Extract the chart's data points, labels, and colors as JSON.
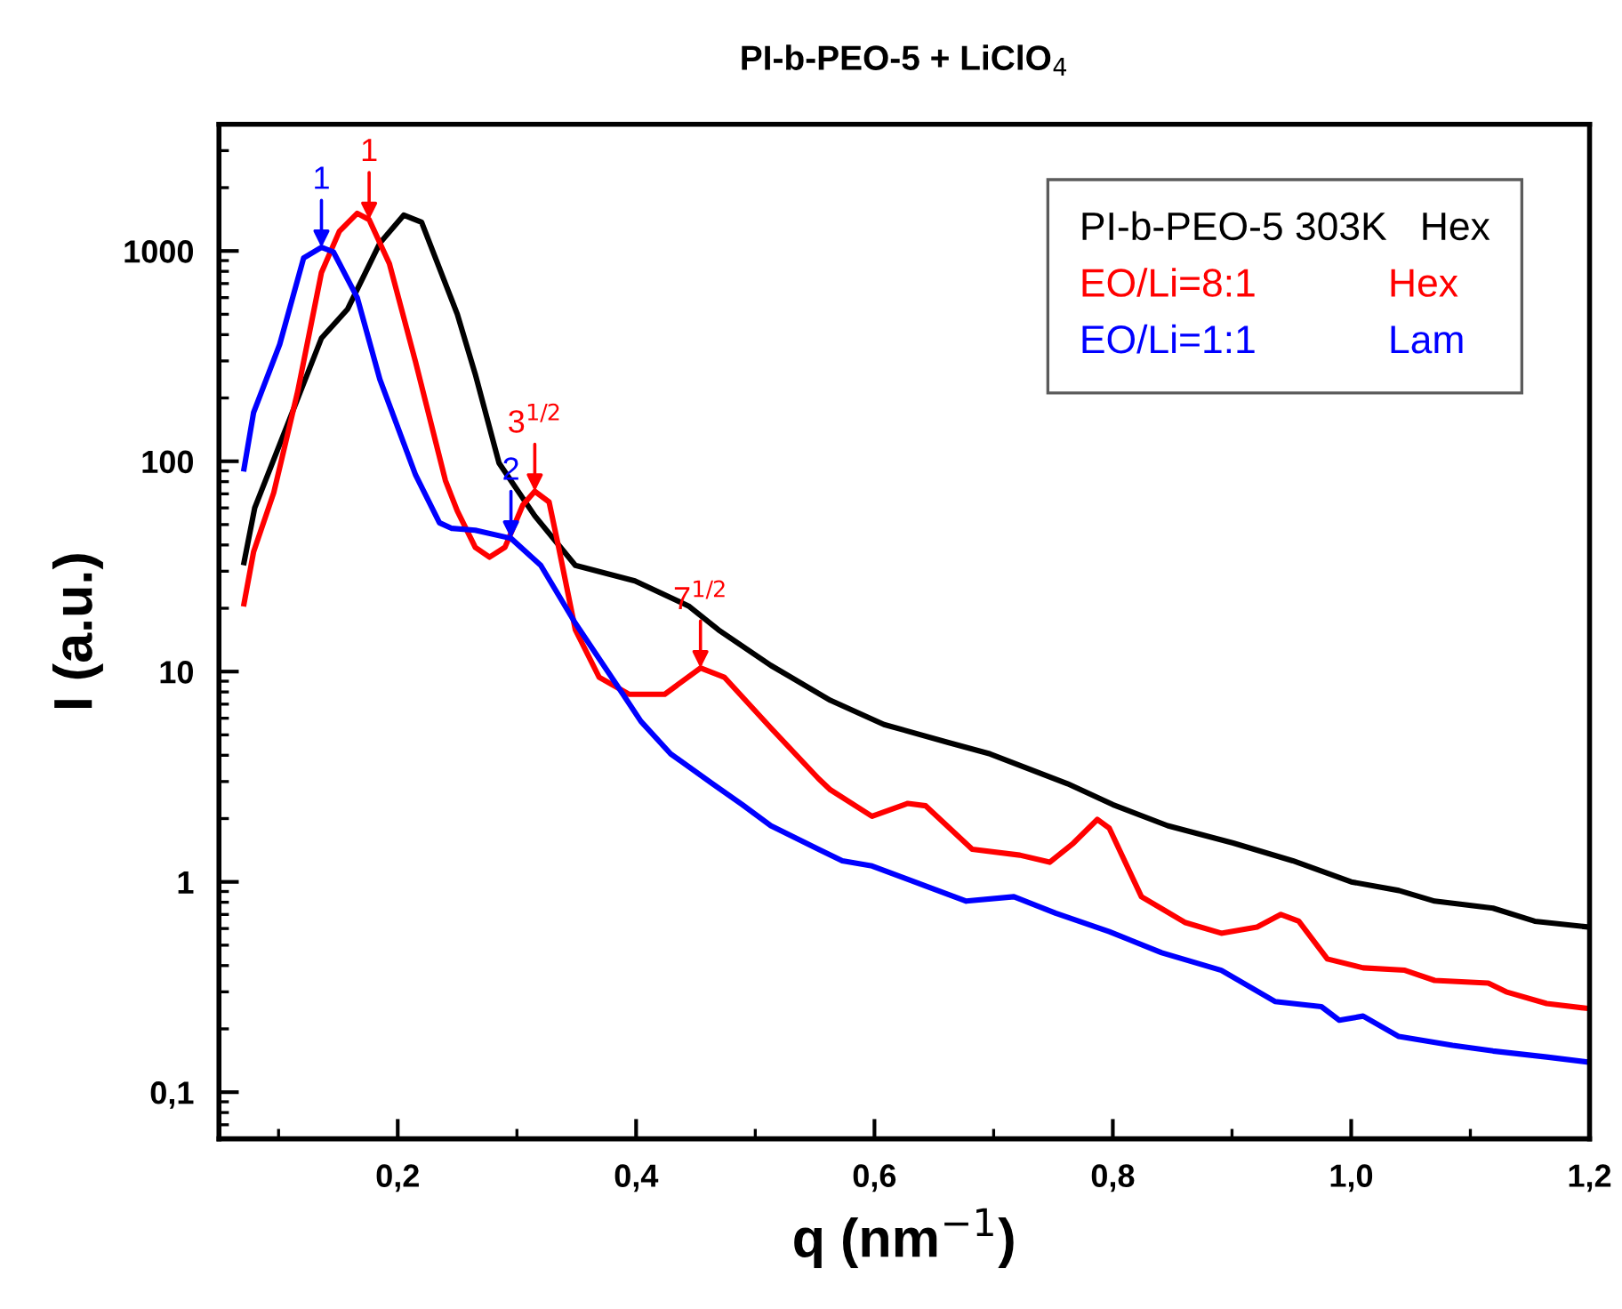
{
  "chart_data": {
    "type": "line",
    "title": "PI-b-PEO-5 + LiClO$_{4}$",
    "xlabel": "q (nm$^{−1}$)",
    "ylabel": "I (a.u.)",
    "log": "y",
    "legend": "top right",
    "grid": false,
    "line_style": "solid",
    "marker": "none",
    "xlim": [
      0.05,
      1.2
    ],
    "ylim": [
      0.06,
      4000
    ],
    "xticks": [
      {
        "value": 0.1,
        "label": null
      },
      {
        "value": 0.2,
        "label": "0,2"
      },
      {
        "value": 0.3,
        "label": null
      },
      {
        "value": 0.4,
        "label": "0,4"
      },
      {
        "value": 0.5,
        "label": null
      },
      {
        "value": 0.6,
        "label": "0,6"
      },
      {
        "value": 0.7,
        "label": null
      },
      {
        "value": 0.8,
        "label": "0,8"
      },
      {
        "value": 0.9,
        "label": null
      },
      {
        "value": 1.0,
        "label": "1,0"
      },
      {
        "value": 1.1,
        "label": null
      },
      {
        "value": 1.2,
        "label": "1,2"
      }
    ],
    "yticks": [
      {
        "value": 0.07,
        "label": null
      },
      {
        "value": 0.08,
        "label": null
      },
      {
        "value": 0.09,
        "label": null
      },
      {
        "value": 0.1,
        "label": "0,1"
      },
      {
        "value": 0.2,
        "label": null
      },
      {
        "value": 0.3,
        "label": null
      },
      {
        "value": 0.4,
        "label": null
      },
      {
        "value": 0.5,
        "label": null
      },
      {
        "value": 0.6,
        "label": null
      },
      {
        "value": 0.7,
        "label": null
      },
      {
        "value": 0.8,
        "label": null
      },
      {
        "value": 0.9,
        "label": null
      },
      1,
      {
        "value": 2,
        "label": null
      },
      {
        "value": 3,
        "label": null
      },
      {
        "value": 4,
        "label": null
      },
      {
        "value": 5,
        "label": null
      },
      {
        "value": 6,
        "label": null
      },
      {
        "value": 7,
        "label": null
      },
      {
        "value": 8,
        "label": null
      },
      {
        "value": 9,
        "label": null
      },
      10,
      {
        "value": 20,
        "label": null
      },
      {
        "value": 30,
        "label": null
      },
      {
        "value": 40,
        "label": null
      },
      {
        "value": 50,
        "label": null
      },
      {
        "value": 60,
        "label": null
      },
      {
        "value": 70,
        "label": null
      },
      {
        "value": 80,
        "label": null
      },
      {
        "value": 90,
        "label": null
      },
      100,
      {
        "value": 200,
        "label": null
      },
      {
        "value": 300,
        "label": null
      },
      {
        "value": 400,
        "label": null
      },
      {
        "value": 500,
        "label": null
      },
      {
        "value": 600,
        "label": null
      },
      {
        "value": 700,
        "label": null
      },
      {
        "value": 800,
        "label": null
      },
      {
        "value": 900,
        "label": null
      },
      1000,
      {
        "value": 2000,
        "label": null
      },
      {
        "value": 3000,
        "label": null
      }
    ],
    "series": [
      {
        "name": "PI-b-PEO-5 303K   Hex",
        "color": "#000000",
        "x": [
          0.071,
          0.08,
          0.136,
          0.158,
          0.185,
          0.205,
          0.22,
          0.25,
          0.265,
          0.285,
          0.315,
          0.349,
          0.399,
          0.444,
          0.469,
          0.513,
          0.563,
          0.608,
          0.662,
          0.697,
          0.762,
          0.8,
          0.846,
          0.901,
          0.951,
          1.0,
          1.04,
          1.07,
          1.119,
          1.154,
          1.199
        ],
        "values": [
          33,
          60,
          385,
          530,
          1090,
          1480,
          1370,
          500,
          260,
          98,
          55,
          32,
          27,
          20.5,
          15.8,
          10.7,
          7.3,
          5.6,
          4.6,
          4.06,
          2.93,
          2.33,
          1.85,
          1.53,
          1.26,
          1.0,
          0.91,
          0.81,
          0.75,
          0.65,
          0.61
        ]
      },
      {
        "name": "EO/Li=8:1            Hex",
        "color": "#ff0000",
        "x": [
          0.071,
          0.079,
          0.096,
          0.116,
          0.136,
          0.151,
          0.166,
          0.176,
          0.193,
          0.215,
          0.24,
          0.25,
          0.265,
          0.277,
          0.29,
          0.305,
          0.315,
          0.327,
          0.335,
          0.349,
          0.369,
          0.394,
          0.424,
          0.454,
          0.474,
          0.513,
          0.553,
          0.563,
          0.598,
          0.628,
          0.643,
          0.682,
          0.722,
          0.747,
          0.767,
          0.787,
          0.797,
          0.824,
          0.861,
          0.891,
          0.921,
          0.941,
          0.956,
          0.98,
          1.01,
          1.045,
          1.07,
          1.115,
          1.13,
          1.164,
          1.199
        ],
        "values": [
          21,
          37,
          71,
          214,
          790,
          1240,
          1510,
          1410,
          870,
          296,
          81,
          58,
          39,
          35,
          39,
          62,
          72,
          64,
          39,
          15.8,
          9.4,
          7.8,
          7.8,
          10.4,
          9.4,
          5.4,
          3.1,
          2.74,
          2.05,
          2.36,
          2.3,
          1.43,
          1.34,
          1.24,
          1.53,
          1.98,
          1.8,
          0.85,
          0.64,
          0.57,
          0.61,
          0.7,
          0.65,
          0.43,
          0.39,
          0.38,
          0.34,
          0.33,
          0.3,
          0.264,
          0.25
        ]
      },
      {
        "name": "EO/Li=1:1            Lam",
        "color": "#0000ff",
        "x": [
          0.071,
          0.079,
          0.101,
          0.121,
          0.136,
          0.146,
          0.166,
          0.185,
          0.215,
          0.235,
          0.245,
          0.265,
          0.295,
          0.32,
          0.349,
          0.389,
          0.404,
          0.429,
          0.464,
          0.489,
          0.513,
          0.553,
          0.573,
          0.598,
          0.653,
          0.677,
          0.717,
          0.752,
          0.797,
          0.841,
          0.891,
          0.936,
          0.975,
          0.99,
          1.01,
          1.04,
          1.085,
          1.119,
          1.164,
          1.199
        ],
        "values": [
          92,
          170,
          360,
          925,
          1040,
          990,
          600,
          245,
          86,
          51,
          48,
          47,
          43,
          32,
          17,
          7.8,
          5.8,
          4.06,
          2.93,
          2.33,
          1.85,
          1.43,
          1.26,
          1.19,
          0.91,
          0.81,
          0.85,
          0.71,
          0.58,
          0.46,
          0.38,
          0.27,
          0.255,
          0.22,
          0.23,
          0.184,
          0.167,
          0.157,
          0.147,
          0.139
        ]
      }
    ],
    "annotations": [
      {
        "text": "1",
        "x": 0.136,
        "y": 1040
      },
      {
        "text": "1",
        "x": 0.176,
        "y": 1410
      },
      {
        "text": "2",
        "x": 0.295,
        "y": 43
      },
      {
        "text": "3$^{1/2}$",
        "x": 0.315,
        "y": 72
      },
      {
        "text": "7$^{1/2}$",
        "x": 0.454,
        "y": 10.4
      }
    ]
  }
}
